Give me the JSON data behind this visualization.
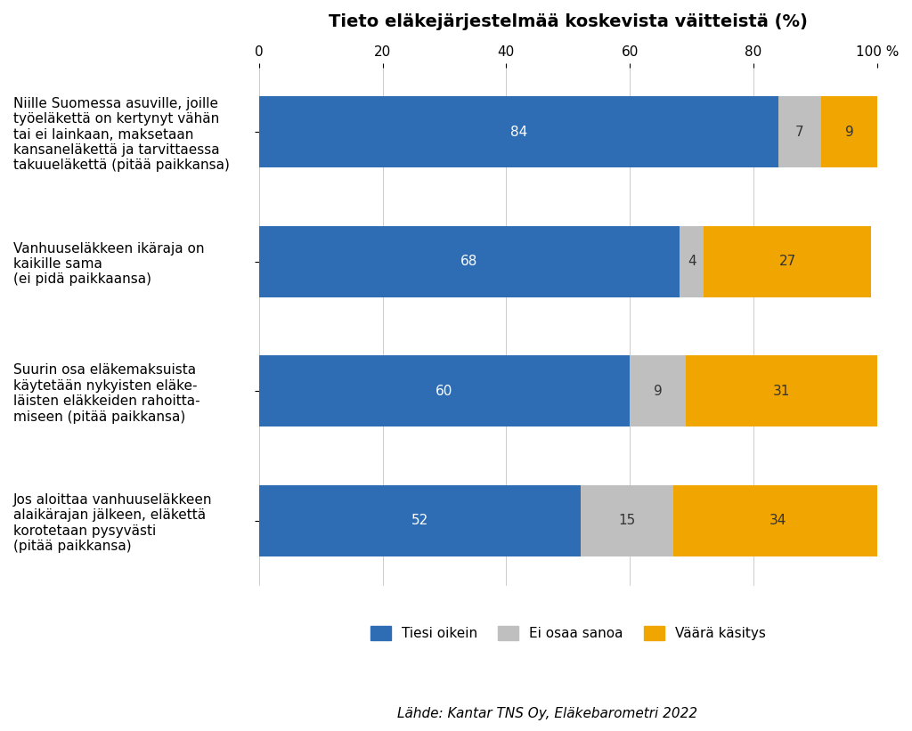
{
  "title": "Tieto eläkejärjestelmää koskevista väitteistä (%)",
  "categories": [
    "Niille Suomessa asuville, joille\ntyöeläkettä on kertynyt vähän\ntai ei lainkaan, maksetaan\nkansaneläkettä ja tarvittaessa\ntakuueläkettä (pitää paikkansa)",
    "Vanhuuseläkkeen ikäraja on\nkaikille sama\n(ei pidä paikkaansa)",
    "Suurin osa eläkemaksuista\nkäytetään nykyisten eläke-\nläisten eläkkeiden rahoitta-\nmiseen (pitää paikkansa)",
    "Jos aloittaa vanhuuseläkkeen\nalaikärajan jälkeen, eläkettä\nkorotetaan pysyvästi\n(pitää paikkansa)"
  ],
  "tiesi_oikein": [
    84,
    68,
    60,
    52
  ],
  "ei_osaa_sanoa": [
    7,
    4,
    9,
    15
  ],
  "vaara_kasitys": [
    9,
    27,
    31,
    34
  ],
  "color_tiesi": "#2E6DB4",
  "color_ei_osaa": "#BFBFBF",
  "color_vaara": "#F0A500",
  "legend_labels": [
    "Tiesi oikein",
    "Ei osaa sanoa",
    "Väärä käsitys"
  ],
  "source_text": "Lähde: Kantar TNS Oy, Eläkebarometri 2022",
  "xlim": [
    0,
    100
  ],
  "xticks": [
    0,
    20,
    40,
    60,
    80,
    100
  ],
  "background_color": "#FFFFFF",
  "title_fontsize": 14,
  "label_fontsize": 11,
  "tick_fontsize": 11,
  "bar_label_fontsize": 11,
  "legend_fontsize": 11,
  "source_fontsize": 11,
  "bar_height": 0.55
}
